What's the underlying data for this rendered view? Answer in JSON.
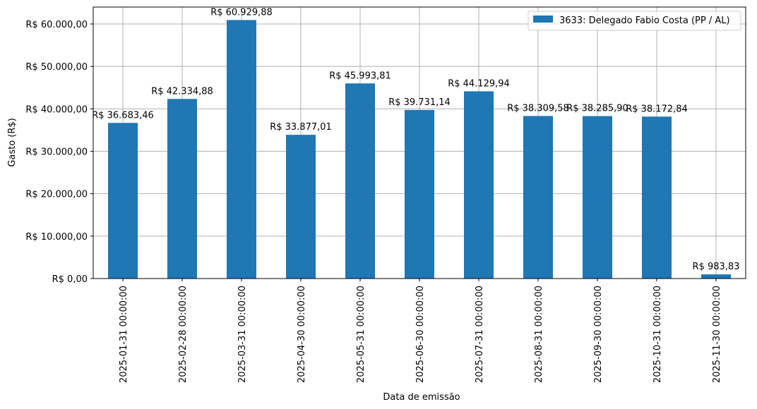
{
  "chart_data": {
    "type": "bar",
    "title": "",
    "xlabel": "Data de emissão",
    "ylabel": "Gasto (R$)",
    "ylim": [
      0,
      64000
    ],
    "grid": true,
    "legend_position": "upper right",
    "color": "#1f77b4",
    "yticks": [
      0,
      10000,
      20000,
      30000,
      40000,
      50000,
      60000
    ],
    "ytick_labels": [
      "R$ 0,00",
      "R$ 10.000,00",
      "R$ 20.000,00",
      "R$ 30.000,00",
      "R$ 40.000,00",
      "R$ 50.000,00",
      "R$ 60.000,00"
    ],
    "categories": [
      "2025-01-31 00:00:00",
      "2025-02-28 00:00:00",
      "2025-03-31 00:00:00",
      "2025-04-30 00:00:00",
      "2025-05-31 00:00:00",
      "2025-06-30 00:00:00",
      "2025-07-31 00:00:00",
      "2025-08-31 00:00:00",
      "2025-09-30 00:00:00",
      "2025-10-31 00:00:00",
      "2025-11-30 00:00:00"
    ],
    "series": [
      {
        "name": "3633: Delegado Fabio Costa (PP / AL)",
        "values": [
          36683.46,
          42334.88,
          60929.88,
          33877.01,
          45993.81,
          39731.14,
          44129.94,
          38309.58,
          38285.9,
          38172.84,
          983.83
        ],
        "labels": [
          "R$ 36.683,46",
          "R$ 42.334,88",
          "R$ 60.929,88",
          "R$ 33.877,01",
          "R$ 45.993,81",
          "R$ 39.731,14",
          "R$ 44.129,94",
          "R$ 38.309,58",
          "R$ 38.285,90",
          "R$ 38.172,84",
          "R$ 983,83"
        ]
      }
    ]
  }
}
